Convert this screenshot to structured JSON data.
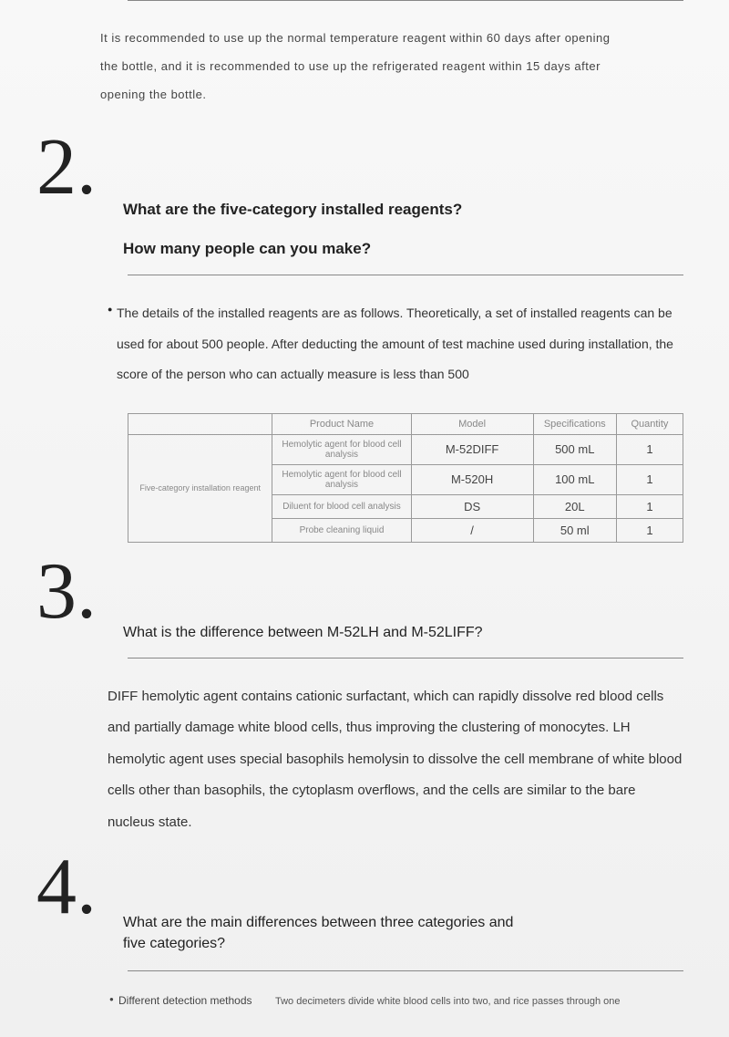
{
  "intro": "It is recommended to use up the normal temperature reagent within 60 days after opening the bottle, and it is recommended to use up the refrigerated reagent within 15 days after opening the bottle.",
  "section2": {
    "number": "2.",
    "title_line1": "What are the five-category installed reagents?",
    "title_line2": "How many people can you make?",
    "body": "The details of the installed reagents are as follows. Theoretically, a set of installed reagents can be used for about 500 people. After deducting the amount of test machine used during installa­tion, the score of the person who can actually measure is less than 500",
    "table": {
      "headers": [
        "",
        "Product Name",
        "Model",
        "Specifications",
        "Quantity"
      ],
      "rowlabel": "Five-category installation reagent",
      "rows": [
        {
          "product": "Hemolytic agent for blood cell analysis",
          "model": "M-52DIFF",
          "spec": "500 mL",
          "qty": "1"
        },
        {
          "product": "Hemolytic agent for blood cell analysis",
          "model": "M-520H",
          "spec": "100 mL",
          "qty": "1"
        },
        {
          "product": "Diluent for blood cell analysis",
          "model": "DS",
          "spec": "20L",
          "qty": "1"
        },
        {
          "product": "Probe cleaning liquid",
          "model": "/",
          "spec": "50 ml",
          "qty": "1"
        }
      ]
    }
  },
  "section3": {
    "number": "3.",
    "title": "What is the difference between M-52LH and M-52LIFF?",
    "body": "DIFF hemolytic agent contains cationic surfactant, which can rapidly dissolve red blood cells and partially damage white blood cells, thus improving the clus­tering of monocytes. LH hemolytic agent uses special basophils hemolysin to dissolve the cell membrane of white blood cells other than basophils, the cyto­plasm overflows, and the cells are similar to the bare nucleus state."
  },
  "section4": {
    "number": "4.",
    "title": "What are the main differences between three cat­egories and five categories?",
    "left": "Different detection methods",
    "right": "Two decimeters divide white blood cells into two, and rice passes through one"
  },
  "colors": {
    "text": "#333333",
    "heading": "#222222",
    "divider": "#888888",
    "table_border": "#999999",
    "bg_top": "#f8f8f8",
    "bg_bottom": "#f0f0f0"
  }
}
